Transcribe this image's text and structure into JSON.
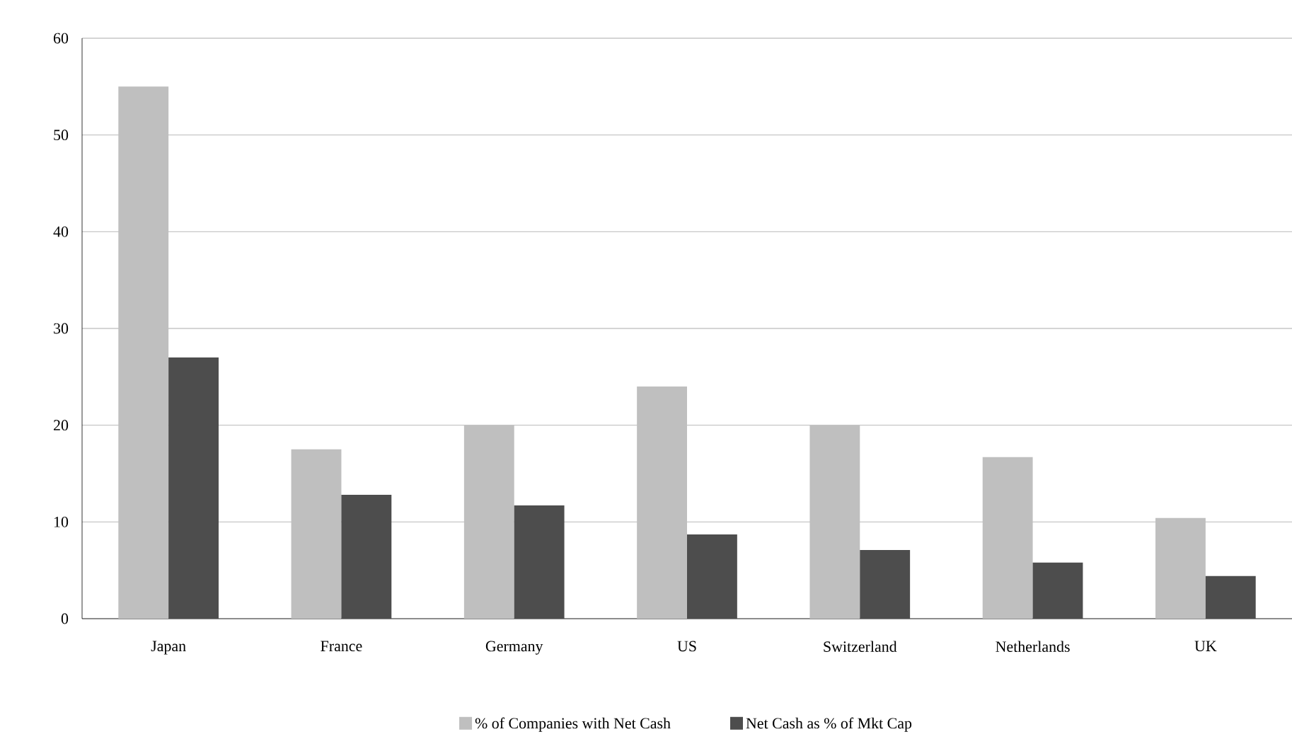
{
  "chart_data": {
    "type": "bar",
    "categories": [
      "Japan",
      "France",
      "Germany",
      "US",
      "Switzerland",
      "Netherlands",
      "UK"
    ],
    "series": [
      {
        "name": "% of Companies with Net Cash",
        "color": "#bfbfbf",
        "values": [
          55.0,
          17.5,
          20.0,
          24.0,
          20.0,
          16.7,
          10.4
        ]
      },
      {
        "name": "Net Cash as  % of Mkt Cap",
        "color": "#4d4d4d",
        "values": [
          27.0,
          12.8,
          11.7,
          8.7,
          7.1,
          5.8,
          4.4
        ]
      }
    ],
    "ylim": [
      0,
      60
    ],
    "yticks": [
      0,
      10,
      20,
      30,
      40,
      50,
      60
    ],
    "grid": "y",
    "legend": "bottom"
  }
}
